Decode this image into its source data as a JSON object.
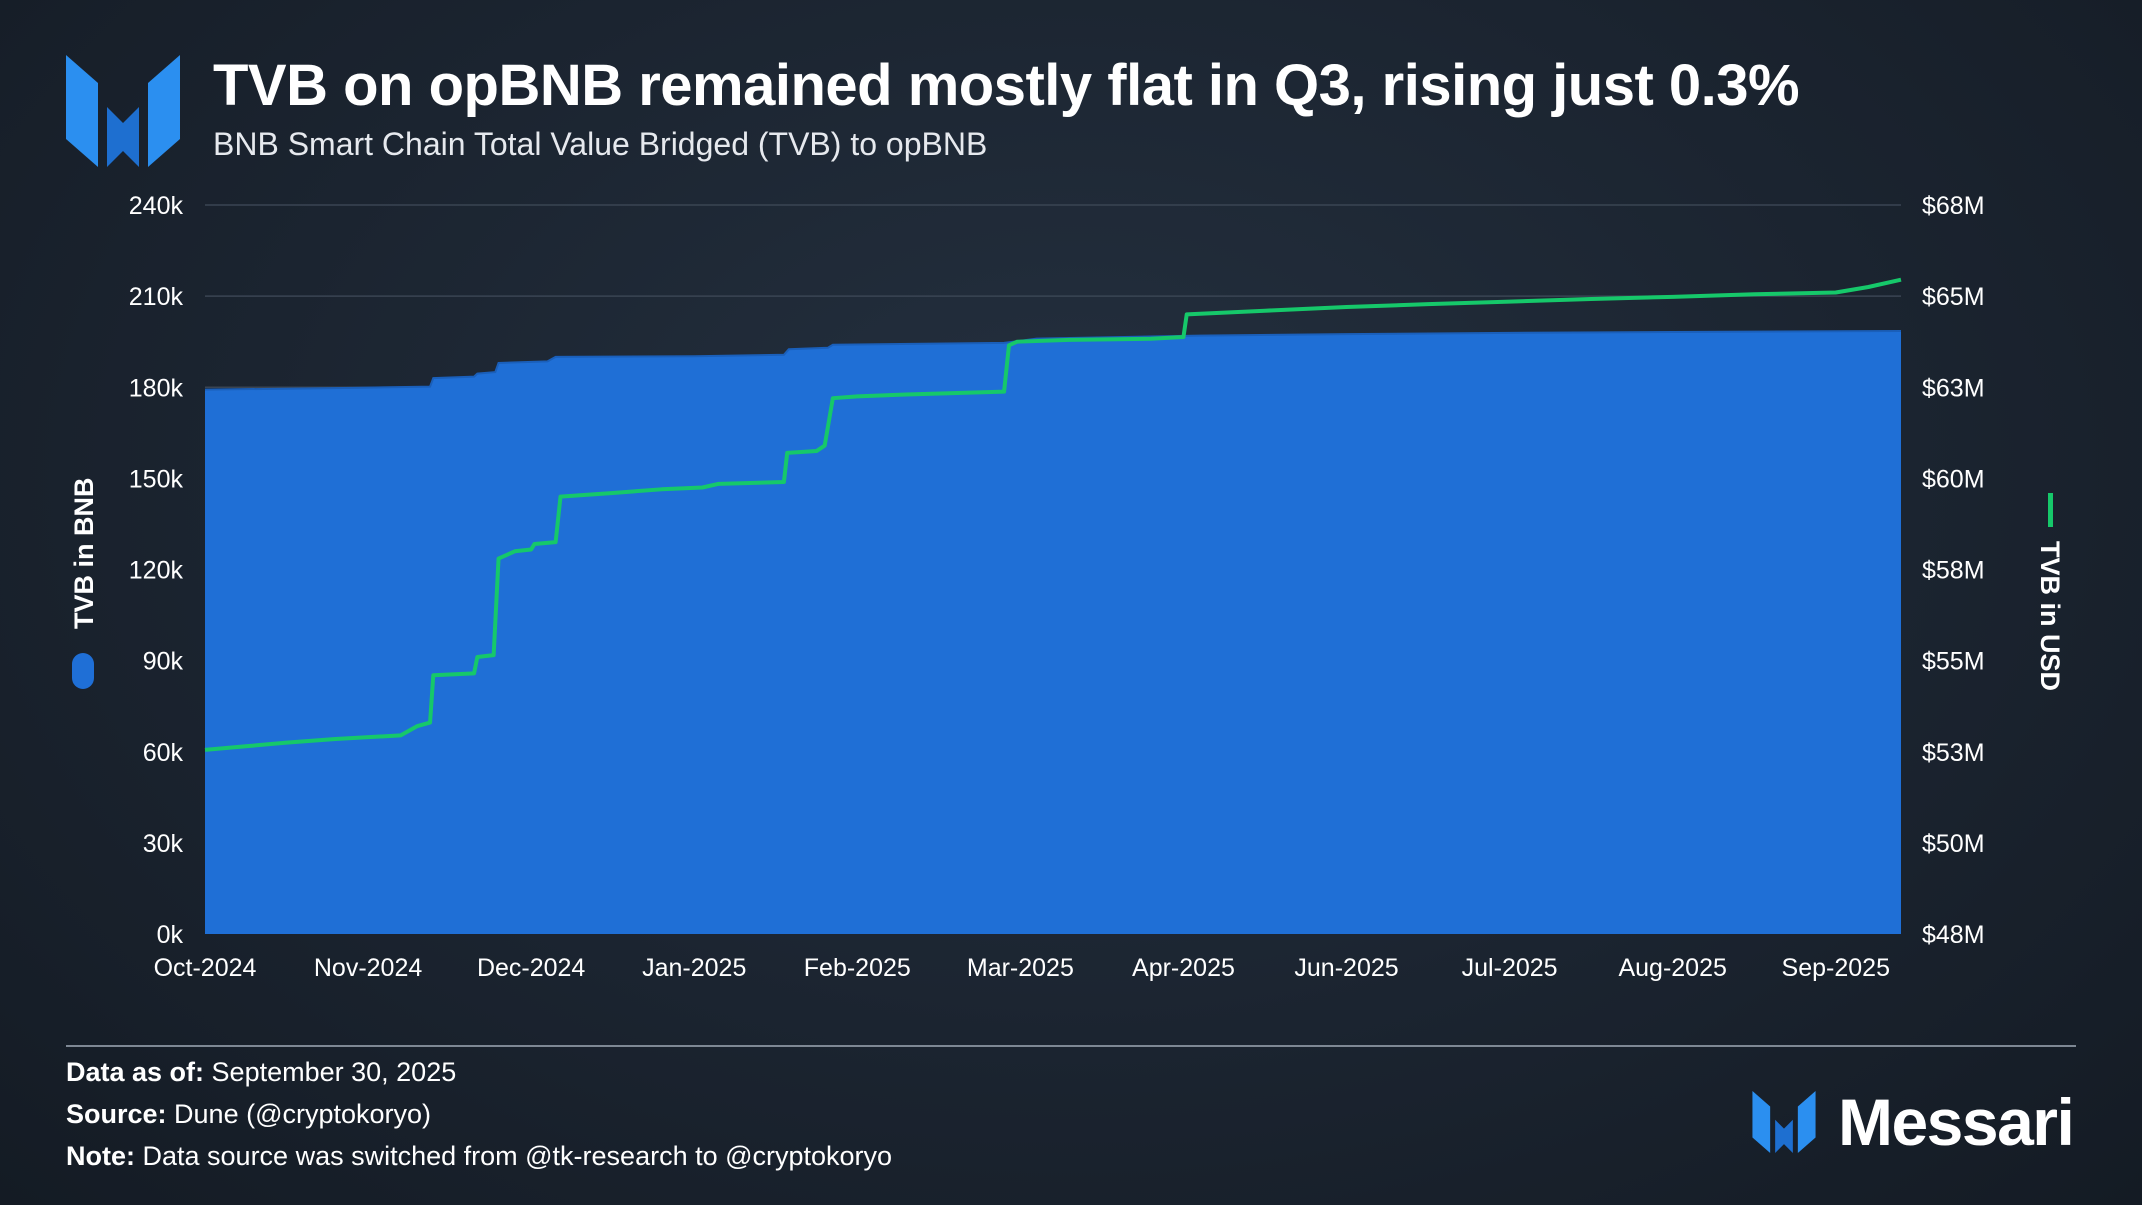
{
  "header": {
    "title": "TVB on opBNB remained mostly flat in Q3, rising just 0.3%",
    "subtitle": "BNB Smart Chain Total Value Bridged (TVB) to opBNB"
  },
  "colors": {
    "bnb_area": "#1f6fd6",
    "usd_line": "#16c86a",
    "brand_blue": "#2b8ff0"
  },
  "chart_data": {
    "type": "area",
    "x_tick_labels": [
      "Oct-2024",
      "Nov-2024",
      "Dec-2024",
      "Jan-2025",
      "Feb-2025",
      "Mar-2025",
      "Apr-2025",
      "Jun-2025",
      "Jul-2025",
      "Aug-2025",
      "Sep-2025"
    ],
    "x_range": [
      0,
      10.4
    ],
    "y_left": {
      "label": "TVB in BNB",
      "min": 0,
      "max": 240000,
      "ticks": [
        "0k",
        "30k",
        "60k",
        "90k",
        "120k",
        "150k",
        "180k",
        "210k",
        "240k"
      ]
    },
    "y_right": {
      "label": "TVB in USD",
      "ticks": [
        "$48M",
        "$50M",
        "$53M",
        "$55M",
        "$58M",
        "$60M",
        "$63M",
        "$65M",
        "$68M"
      ],
      "range_millions": [
        48,
        68
      ]
    },
    "grid": true,
    "series": [
      {
        "name": "TVB in BNB",
        "axis": "left",
        "style": "area-step",
        "points": [
          [
            0,
            179200
          ],
          [
            0.9,
            179800
          ],
          [
            1.38,
            180200
          ],
          [
            1.4,
            183000
          ],
          [
            1.65,
            183500
          ],
          [
            1.67,
            184500
          ],
          [
            1.78,
            185000
          ],
          [
            1.8,
            188000
          ],
          [
            2.1,
            188500
          ],
          [
            2.15,
            190000
          ],
          [
            3,
            190200
          ],
          [
            3.55,
            190700
          ],
          [
            3.58,
            192500
          ],
          [
            3.82,
            193000
          ],
          [
            3.85,
            194000
          ],
          [
            4.9,
            194600
          ],
          [
            5.1,
            196000
          ],
          [
            6.1,
            197000
          ],
          [
            7,
            197500
          ],
          [
            8,
            197900
          ],
          [
            9,
            198200
          ],
          [
            10.4,
            198500
          ]
        ]
      },
      {
        "name": "TVB in USD",
        "axis": "right",
        "style": "line-step",
        "points_usd_millions": [
          [
            0,
            53.05
          ],
          [
            0.25,
            53.15
          ],
          [
            0.5,
            53.25
          ],
          [
            0.8,
            53.35
          ],
          [
            1.2,
            53.45
          ],
          [
            1.3,
            53.7
          ],
          [
            1.38,
            53.8
          ],
          [
            1.4,
            55.1
          ],
          [
            1.65,
            55.15
          ],
          [
            1.67,
            55.6
          ],
          [
            1.77,
            55.65
          ],
          [
            1.8,
            58.3
          ],
          [
            1.85,
            58.4
          ],
          [
            1.9,
            58.5
          ],
          [
            2.0,
            58.55
          ],
          [
            2.02,
            58.7
          ],
          [
            2.15,
            58.75
          ],
          [
            2.18,
            60.0
          ],
          [
            2.5,
            60.1
          ],
          [
            2.8,
            60.2
          ],
          [
            3.05,
            60.25
          ],
          [
            3.15,
            60.35
          ],
          [
            3.55,
            60.4
          ],
          [
            3.57,
            61.2
          ],
          [
            3.75,
            61.25
          ],
          [
            3.8,
            61.4
          ],
          [
            3.85,
            62.7
          ],
          [
            4.0,
            62.75
          ],
          [
            4.3,
            62.8
          ],
          [
            4.9,
            62.88
          ],
          [
            4.93,
            64.15
          ],
          [
            4.98,
            64.25
          ],
          [
            5.3,
            64.3
          ],
          [
            5.8,
            64.33
          ],
          [
            6.0,
            64.38
          ],
          [
            6.02,
            65.0
          ],
          [
            6.5,
            65.1
          ],
          [
            7.0,
            65.2
          ],
          [
            7.5,
            65.28
          ],
          [
            8.0,
            65.35
          ],
          [
            8.5,
            65.42
          ],
          [
            9.0,
            65.48
          ],
          [
            9.5,
            65.55
          ],
          [
            10.0,
            65.6
          ],
          [
            10.2,
            65.75
          ],
          [
            10.4,
            65.95
          ]
        ]
      }
    ]
  },
  "footer": {
    "data_as_of_label": "Data as of:",
    "data_as_of_value": " September 30, 2025",
    "source_label": "Source:",
    "source_value": " Dune (@cryptokoryo)",
    "note_label": "Note:",
    "note_value": " Data source was switched from @tk-research to @cryptokoryo"
  },
  "brand": {
    "logo_icon": "messari-m-icon",
    "wordmark": "Messari"
  }
}
